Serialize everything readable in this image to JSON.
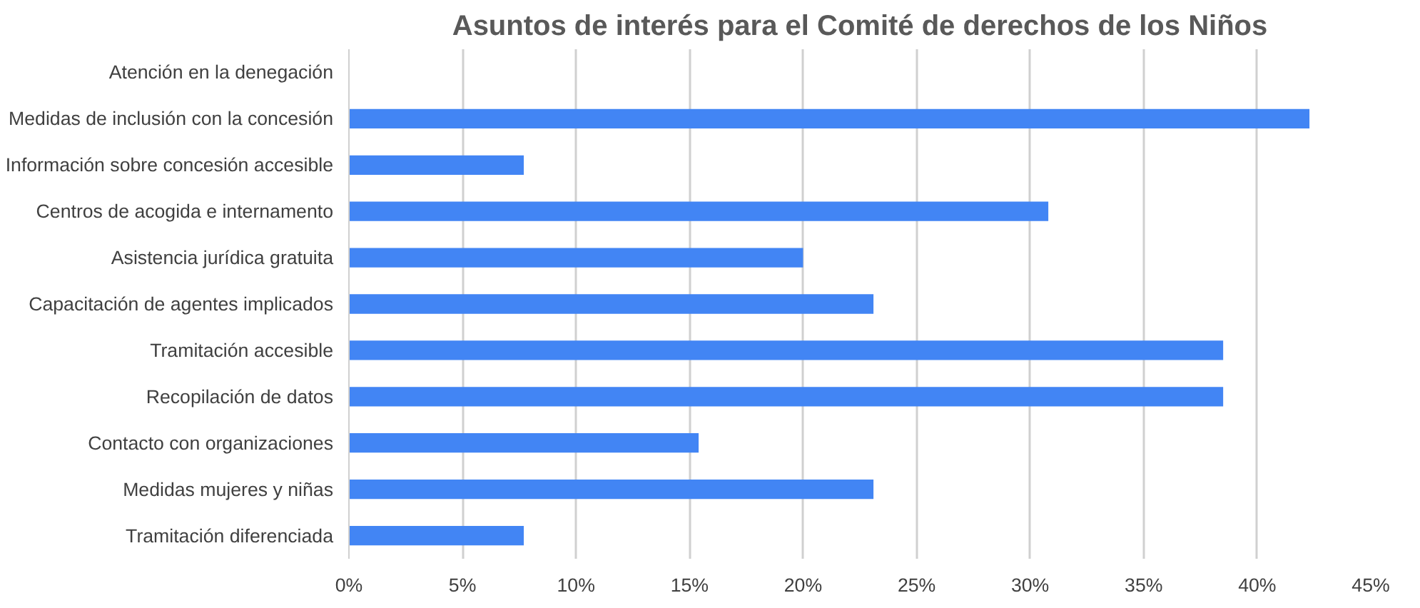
{
  "chart_data": {
    "type": "bar",
    "orientation": "horizontal",
    "title": "Asuntos de interés para el Comité de derechos de los Niños",
    "categories": [
      "Atención en la denegación",
      "Medidas de inclusión con la concesión",
      "Información sobre concesión accesible",
      "Centros de acogida e internamento",
      "Asistencia jurídica gratuita",
      "Capacitación de agentes implicados",
      "Tramitación accesible",
      "Recopilación de datos",
      "Contacto con organizaciones",
      "Medidas mujeres y niñas",
      "Tramitación diferenciada"
    ],
    "values": [
      0,
      42.3,
      7.7,
      30.8,
      20,
      23.1,
      38.5,
      38.5,
      15.4,
      23.1,
      7.7
    ],
    "color": "#4285f4",
    "xlim": [
      0,
      45
    ],
    "xticks": [
      {
        "value": 0,
        "label": "0%"
      },
      {
        "value": 5,
        "label": "5%"
      },
      {
        "value": 10,
        "label": "10%"
      },
      {
        "value": 15,
        "label": "15%"
      },
      {
        "value": 20,
        "label": "20%"
      },
      {
        "value": 25,
        "label": "25%"
      },
      {
        "value": 30,
        "label": "30%"
      },
      {
        "value": 35,
        "label": "35%"
      },
      {
        "value": 40,
        "label": "40%"
      },
      {
        "value": 45,
        "label": "45%"
      }
    ],
    "grid": "x"
  }
}
